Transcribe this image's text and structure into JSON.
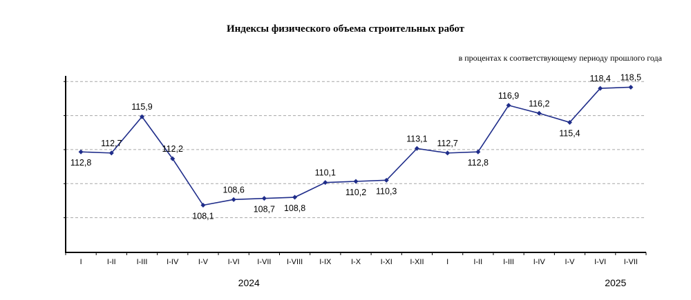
{
  "chart_data": {
    "type": "line",
    "title": "Индексы физического объема строительных  работ",
    "subtitle": "в процентах к соответствующему периоду прошлого года",
    "categories": [
      "I",
      "I-II",
      "I-III",
      "I-IV",
      "I-V",
      "I-VI",
      "I-VII",
      "I-VIII",
      "I-IX",
      "I-X",
      "I-XI",
      "I-XII",
      "I",
      "I-II",
      "I-III",
      "I-IV",
      "I-V",
      "I-VI",
      "I-VII"
    ],
    "values": [
      112.8,
      112.7,
      115.9,
      112.2,
      108.1,
      108.6,
      108.7,
      108.8,
      110.1,
      110.2,
      110.3,
      113.1,
      112.7,
      112.8,
      116.9,
      116.2,
      115.4,
      118.4,
      118.5
    ],
    "value_labels": [
      "112,8",
      "112,7",
      "115,9",
      "112,2",
      "108,1",
      "108,6",
      "108,7",
      "108,8",
      "110,1",
      "110,2",
      "110,3",
      "113,1",
      "112,7",
      "112,8",
      "116,9",
      "116,2",
      "115,4",
      "118,4",
      "118,5"
    ],
    "label_positions": [
      "below",
      "above",
      "above",
      "above",
      "below",
      "above",
      "below",
      "below",
      "above",
      "below",
      "below",
      "above",
      "above",
      "below",
      "above",
      "above",
      "below",
      "above",
      "above"
    ],
    "year_groups": [
      {
        "label": "2024",
        "start": 0,
        "end": 11
      },
      {
        "label": "2025",
        "start": 17,
        "end": 18
      }
    ],
    "ylim": [
      104,
      119.5
    ],
    "gridlines": [
      107,
      110,
      113,
      116,
      119
    ],
    "grid": true,
    "line_color": "#1f2d8a",
    "grid_color": "#a6a6a6"
  }
}
